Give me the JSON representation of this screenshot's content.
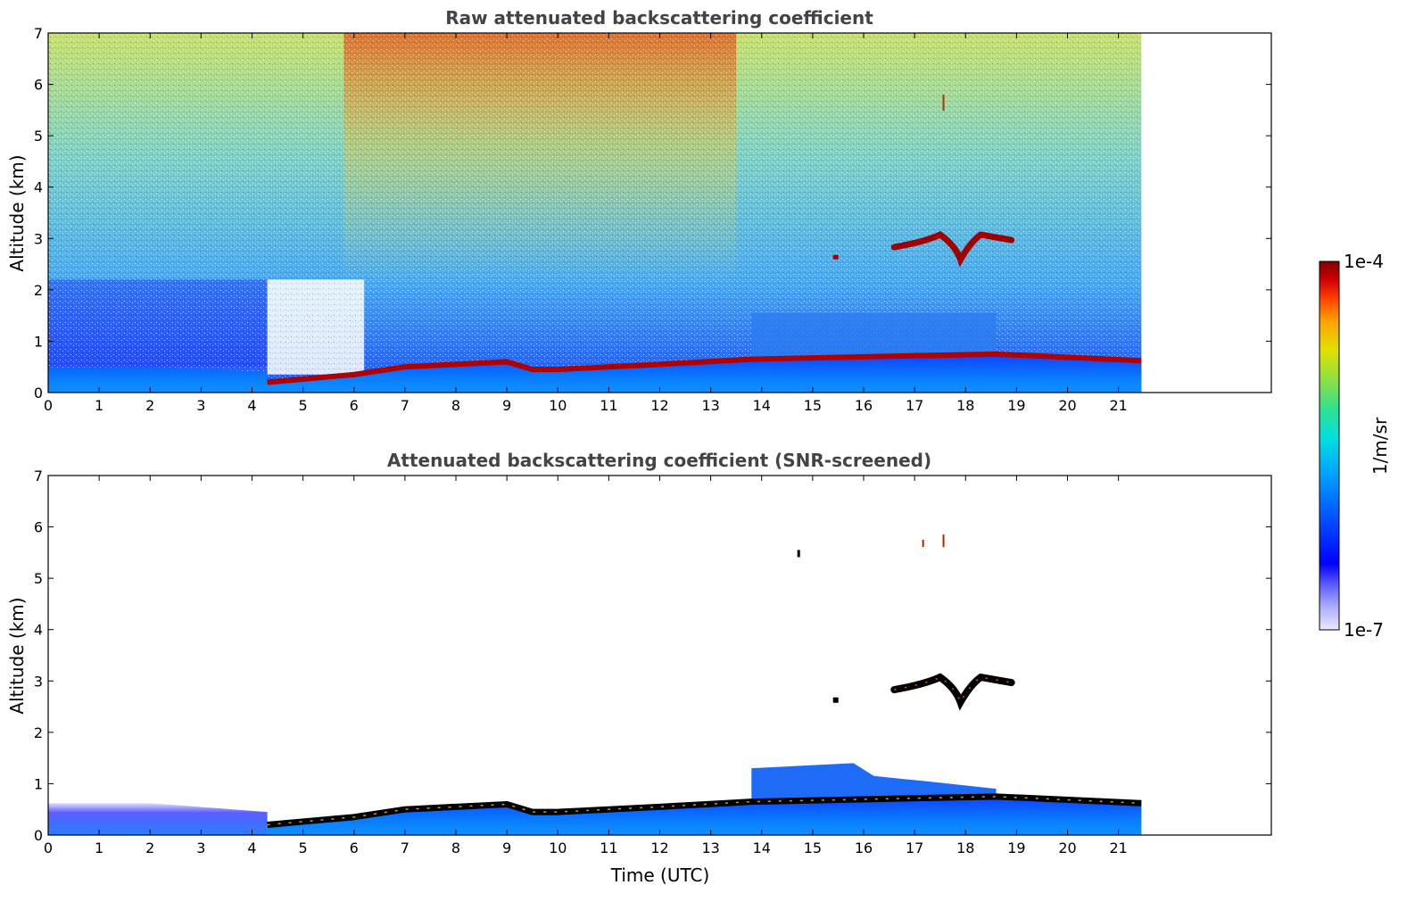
{
  "chart_data": [
    {
      "type": "heatmap",
      "title": "Raw attenuated backscattering coefficient",
      "xlabel": "",
      "ylabel": "Altitude (km)",
      "xlim": [
        0,
        24
      ],
      "ylim": [
        0,
        7
      ],
      "xticks": [
        "0",
        "1",
        "2",
        "3",
        "4",
        "5",
        "6",
        "7",
        "8",
        "9",
        "10",
        "11",
        "12",
        "13",
        "14",
        "15",
        "16",
        "17",
        "18",
        "19",
        "20",
        "21"
      ],
      "yticks": [
        "0",
        "1",
        "2",
        "3",
        "4",
        "5",
        "6",
        "7"
      ],
      "data_end_hour": 21.45,
      "boundary_layer_top_km": [
        {
          "x": 0,
          "y": 0.48
        },
        {
          "x": 2,
          "y": 0.5
        },
        {
          "x": 4.3,
          "y": 0.4
        },
        {
          "x": 4.3,
          "y": 0.2
        },
        {
          "x": 6,
          "y": 0.35
        },
        {
          "x": 7,
          "y": 0.5
        },
        {
          "x": 8,
          "y": 0.55
        },
        {
          "x": 9,
          "y": 0.6
        },
        {
          "x": 9.5,
          "y": 0.45
        },
        {
          "x": 10,
          "y": 0.45
        },
        {
          "x": 12,
          "y": 0.55
        },
        {
          "x": 13.8,
          "y": 0.65
        },
        {
          "x": 18.6,
          "y": 0.75
        },
        {
          "x": 21.45,
          "y": 0.62
        }
      ],
      "features": [
        {
          "name": "cloud layer",
          "x_start": 16.6,
          "x_end": 18.9,
          "y_km": 2.9
        },
        {
          "name": "aerosol layer",
          "x_start": 13.8,
          "x_end": 18.6,
          "y_km": 1.1
        }
      ]
    },
    {
      "type": "heatmap",
      "title": "Attenuated backscattering coefficient (SNR-screened)",
      "xlabel": "Time (UTC)",
      "ylabel": "Altitude (km)",
      "xlim": [
        0,
        24
      ],
      "ylim": [
        0,
        7
      ],
      "xticks": [
        "0",
        "1",
        "2",
        "3",
        "4",
        "5",
        "6",
        "7",
        "8",
        "9",
        "10",
        "11",
        "12",
        "13",
        "14",
        "15",
        "16",
        "17",
        "18",
        "19",
        "20",
        "21"
      ],
      "yticks": [
        "0",
        "1",
        "2",
        "3",
        "4",
        "5",
        "6",
        "7"
      ],
      "data_end_hour": 21.45
    }
  ],
  "colorbar": {
    "label": "1/m/sr",
    "max_label": "1e-4",
    "min_label": "1e-7",
    "colors": [
      "#e8e8ff",
      "#b0b0ff",
      "#6060ff",
      "#0000ff",
      "#0050ff",
      "#00a0ff",
      "#00e0e0",
      "#30e090",
      "#90e040",
      "#e0e000",
      "#ffa000",
      "#ff4000",
      "#d00000",
      "#800000"
    ]
  }
}
